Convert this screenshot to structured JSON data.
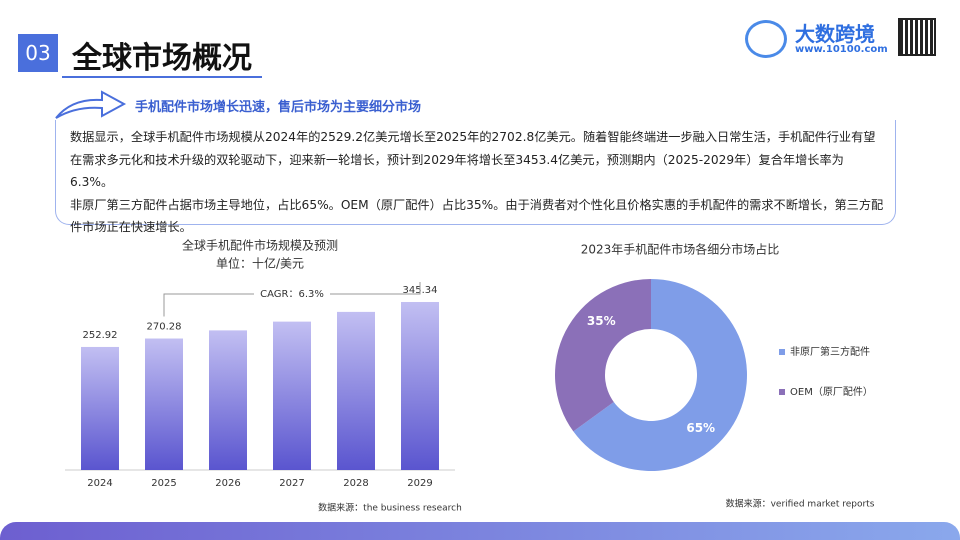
{
  "header": {
    "number": "03",
    "title": "全球市场概况",
    "logo": "大数跨境",
    "url": "www.10100.com"
  },
  "subtitle": "手机配件市场增长迅速，售后市场为主要细分市场",
  "paragraphs": [
    "数据显示，全球手机配件市场规模从2024年的2529.2亿美元增长至2025年的2702.8亿美元。随着智能终端进一步融入日常生活，手机配件行业有望在需求多元化和技术升级的双轮驱动下，迎来新一轮增长，预计到2029年将增长至3453.4亿美元，预测期内（2025-2029年）复合年增长率为6.3%。",
    "非原厂第三方配件占据市场主导地位，占比65%。OEM（原厂配件）占比35%。由于消费者对个性化且价格实惠的手机配件的需求不断增长，第三方配件市场正在快速增长。"
  ],
  "chart_data": [
    {
      "type": "bar",
      "title": "全球手机配件市场规模及预测",
      "subtitle": "单位：十亿/美元",
      "categories": [
        "2024",
        "2025",
        "2026",
        "2027",
        "2028",
        "2029"
      ],
      "values": [
        252.92,
        270.28,
        287,
        305,
        325,
        345.34
      ],
      "value_labels": [
        "252.92",
        "270.28",
        null,
        null,
        null,
        "345.34"
      ],
      "ylim": [
        0,
        370
      ],
      "color": "#6b66d6",
      "annotation": "CAGR：6.3%",
      "source": "数据来源：the business research"
    },
    {
      "type": "pie",
      "title": "2023年手机配件市场各细分市场占比",
      "categories": [
        "非原厂第三方配件",
        "OEM（原厂配件）"
      ],
      "values": [
        65,
        35
      ],
      "value_labels": [
        "65%",
        "35%"
      ],
      "colors": [
        "#7f9de8",
        "#8b70b8"
      ],
      "donut": true,
      "legend": "right",
      "source": "数据来源：verified market reports"
    }
  ]
}
